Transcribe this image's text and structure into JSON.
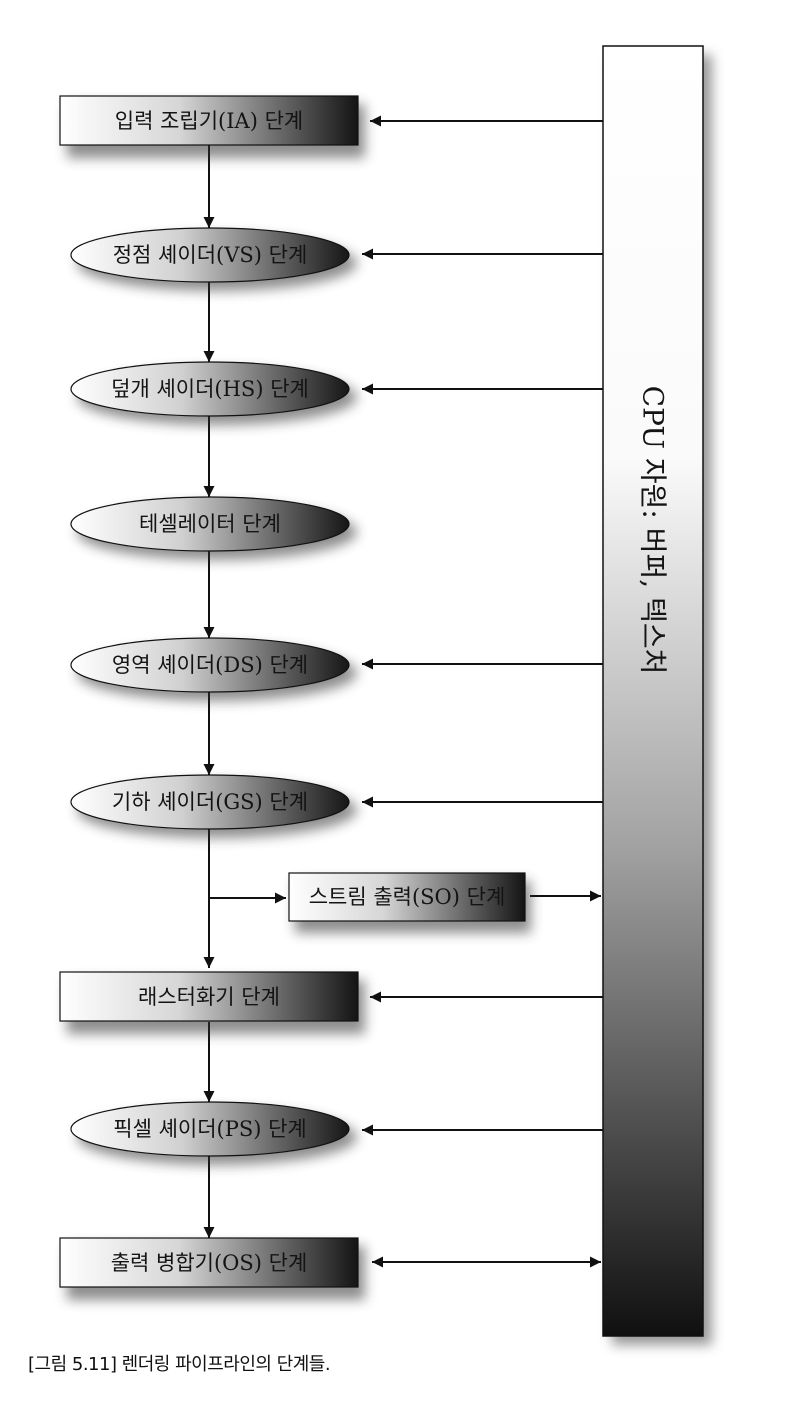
{
  "cpu_resources_label": "CPU 자원: 버퍼, 텍스처",
  "stages": {
    "ia": "입력 조립기(IA) 단계",
    "vs": "정점 셰이더(VS) 단계",
    "hs": "덮개 셰이더(HS) 단계",
    "tess": "테셀레이터 단계",
    "ds": "영역 셰이더(DS) 단계",
    "gs": "기하 셰이더(GS) 단계",
    "so": "스트림 출력(SO) 단계",
    "rs": "래스터화기 단계",
    "ps": "픽셀 셰이더(PS) 단계",
    "om": "출력 병합기(OS) 단계"
  },
  "caption": "[그림 5.11] 렌더링 파이프라인의 단계들."
}
